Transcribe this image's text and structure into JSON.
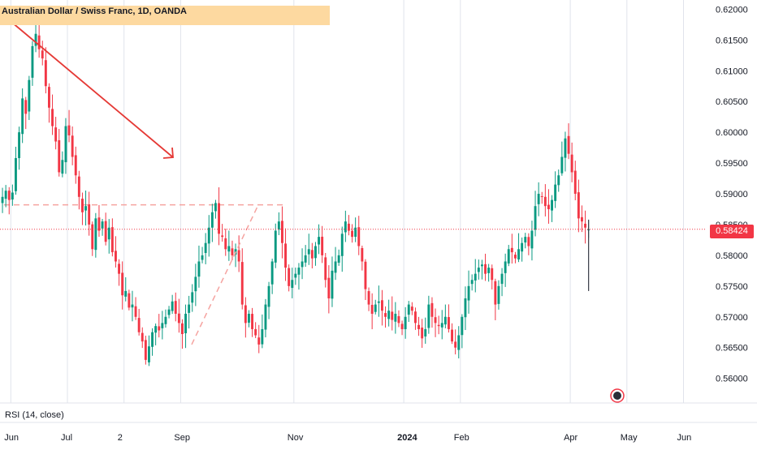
{
  "chart_data": {
    "type": "candlestick",
    "title": "Australian Dollar / Swiss Franc, 1D, OANDA",
    "last_price": "0.58424",
    "indicator_label": "RSI (14, close)",
    "y_ticks": [
      "0.62000",
      "0.61500",
      "0.61000",
      "0.60500",
      "0.60000",
      "0.59500",
      "0.59000",
      "0.58500",
      "0.58000",
      "0.57500",
      "0.57000",
      "0.56500",
      "0.56000"
    ],
    "y_tick_values": [
      0.62,
      0.615,
      0.61,
      0.605,
      0.6,
      0.595,
      0.59,
      0.585,
      0.58,
      0.575,
      0.57,
      0.565,
      0.56
    ],
    "ylim": [
      0.556,
      0.6215
    ],
    "x_ticks": [
      {
        "label": "Jun",
        "index": 3,
        "bold": false
      },
      {
        "label": "Jul",
        "index": 20,
        "bold": false
      },
      {
        "label": "2",
        "index": 37,
        "bold": false
      },
      {
        "label": "Sep",
        "index": 54,
        "bold": false
      },
      {
        "label": "Nov",
        "index": 88,
        "bold": false
      },
      {
        "label": "2024",
        "index": 121,
        "bold": true
      },
      {
        "label": "Feb",
        "index": 138,
        "bold": false
      },
      {
        "label": "Apr",
        "index": 171,
        "bold": false
      },
      {
        "label": "May",
        "index": 188,
        "bold": false
      },
      {
        "label": "Jun",
        "index": 205,
        "bold": false
      }
    ],
    "up_color": "#089981",
    "down_color": "#f23645",
    "grid": true,
    "closes": [
      0.5895,
      0.5905,
      0.589,
      0.5902,
      0.5958,
      0.6,
      0.6055,
      0.603,
      0.6085,
      0.614,
      0.616,
      0.6135,
      0.612,
      0.6075,
      0.604,
      0.601,
      0.5985,
      0.5935,
      0.5955,
      0.601,
      0.5995,
      0.596,
      0.593,
      0.5895,
      0.587,
      0.588,
      0.585,
      0.581,
      0.586,
      0.584,
      0.5855,
      0.5822,
      0.5845,
      0.5805,
      0.579,
      0.577,
      0.5735,
      0.5742,
      0.5715,
      0.572,
      0.57,
      0.5675,
      0.566,
      0.563,
      0.5652,
      0.5675,
      0.5685,
      0.5678,
      0.569,
      0.57,
      0.5712,
      0.5725,
      0.5705,
      0.569,
      0.5672,
      0.5705,
      0.572,
      0.574,
      0.5765,
      0.579,
      0.58,
      0.582,
      0.5845,
      0.587,
      0.5885,
      0.5835,
      0.583,
      0.581,
      0.5815,
      0.58,
      0.581,
      0.579,
      0.572,
      0.569,
      0.5705,
      0.568,
      0.567,
      0.5655,
      0.568,
      0.572,
      0.575,
      0.579,
      0.584,
      0.5855,
      0.582,
      0.578,
      0.575,
      0.576,
      0.577,
      0.578,
      0.579,
      0.58,
      0.581,
      0.5795,
      0.5815,
      0.583,
      0.58,
      0.576,
      0.573,
      0.5775,
      0.579,
      0.58,
      0.5835,
      0.5855,
      0.584,
      0.583,
      0.5845,
      0.5815,
      0.579,
      0.5745,
      0.572,
      0.5705,
      0.572,
      0.5725,
      0.571,
      0.57,
      0.571,
      0.5695,
      0.5705,
      0.569,
      0.568,
      0.57,
      0.572,
      0.571,
      0.569,
      0.568,
      0.5665,
      0.568,
      0.572,
      0.57,
      0.569,
      0.5685,
      0.569,
      0.57,
      0.568,
      0.566,
      0.565,
      0.567,
      0.57,
      0.573,
      0.575,
      0.576,
      0.577,
      0.578,
      0.5785,
      0.577,
      0.578,
      0.576,
      0.572,
      0.575,
      0.577,
      0.579,
      0.581,
      0.5805,
      0.5795,
      0.581,
      0.582,
      0.583,
      0.5815,
      0.584,
      0.588,
      0.59,
      0.5895,
      0.588,
      0.5875,
      0.589,
      0.5915,
      0.593,
      0.596,
      0.599,
      0.5965,
      0.5935,
      0.59,
      0.586,
      0.5855,
      0.5845,
      0.5842
    ],
    "opens_offset_hint": "derived"
  }
}
